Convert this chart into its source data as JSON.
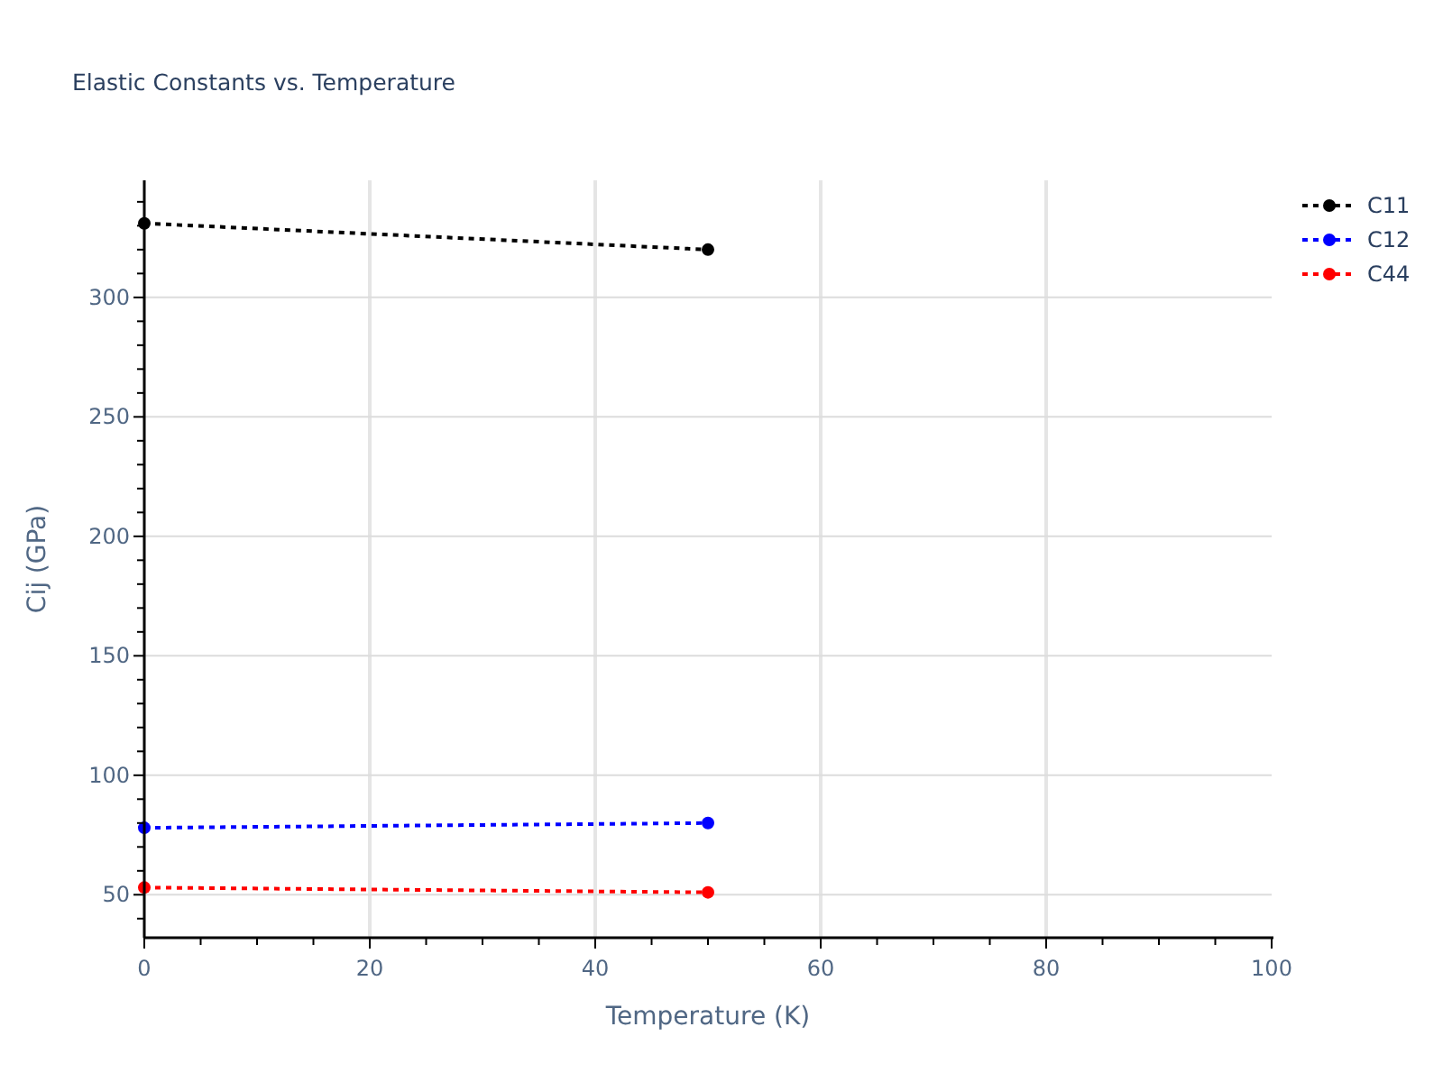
{
  "chart_data": {
    "type": "line",
    "title": "Elastic Constants vs. Temperature",
    "xlabel": "Temperature (K)",
    "ylabel": "Cij (GPa)",
    "x": [
      0,
      50
    ],
    "series": [
      {
        "name": "C11",
        "color": "#000000",
        "values": [
          331,
          320
        ]
      },
      {
        "name": "C12",
        "color": "#0000ff",
        "values": [
          78,
          80
        ]
      },
      {
        "name": "C44",
        "color": "#ff0000",
        "values": [
          53,
          51
        ]
      }
    ],
    "xlim": [
      0,
      100
    ],
    "xticks": [
      0,
      {
        "value": 5,
        "label": null
      },
      {
        "value": 10,
        "label": null
      },
      {
        "value": 15,
        "label": null
      },
      20,
      {
        "value": 25,
        "label": null
      },
      {
        "value": 30,
        "label": null
      },
      {
        "value": 35,
        "label": null
      },
      40,
      {
        "value": 45,
        "label": null
      },
      {
        "value": 50,
        "label": null
      },
      {
        "value": 55,
        "label": null
      },
      60,
      {
        "value": 65,
        "label": null
      },
      {
        "value": 70,
        "label": null
      },
      {
        "value": 75,
        "label": null
      },
      80,
      {
        "value": 85,
        "label": null
      },
      {
        "value": 90,
        "label": null
      },
      {
        "value": 95,
        "label": null
      },
      100
    ],
    "ylim": [
      32,
      349
    ],
    "yticks": [
      {
        "value": 40,
        "label": null
      },
      50,
      {
        "value": 60,
        "label": null
      },
      {
        "value": 70,
        "label": null
      },
      {
        "value": 80,
        "label": null
      },
      {
        "value": 90,
        "label": null
      },
      100,
      {
        "value": 110,
        "label": null
      },
      {
        "value": 120,
        "label": null
      },
      {
        "value": 130,
        "label": null
      },
      {
        "value": 140,
        "label": null
      },
      150,
      {
        "value": 160,
        "label": null
      },
      {
        "value": 170,
        "label": null
      },
      {
        "value": 180,
        "label": null
      },
      {
        "value": 190,
        "label": null
      },
      200,
      {
        "value": 210,
        "label": null
      },
      {
        "value": 220,
        "label": null
      },
      {
        "value": 230,
        "label": null
      },
      {
        "value": 240,
        "label": null
      },
      250,
      {
        "value": 260,
        "label": null
      },
      {
        "value": 270,
        "label": null
      },
      {
        "value": 280,
        "label": null
      },
      {
        "value": 290,
        "label": null
      },
      300,
      {
        "value": 310,
        "label": null
      },
      {
        "value": 320,
        "label": null
      },
      {
        "value": 330,
        "label": null
      },
      {
        "value": 340,
        "label": null
      }
    ],
    "grid": true,
    "legend": "top right",
    "marker": "circle",
    "line_style": "dotted"
  }
}
